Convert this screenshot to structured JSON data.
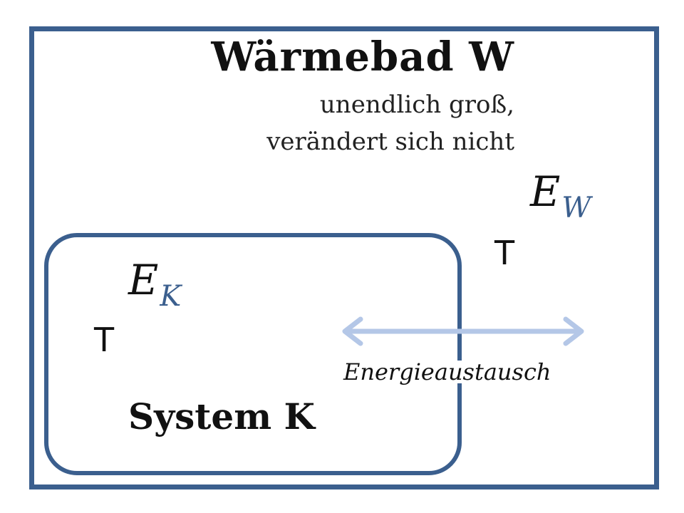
{
  "diagram": {
    "heat_bath": {
      "title": "Wärmebad W",
      "description_line1": "unendlich groß,",
      "description_line2": "verändert sich nicht",
      "energy_symbol": "E",
      "energy_subscript": "W",
      "temperature_symbol": "T"
    },
    "system": {
      "label": "System K",
      "energy_symbol": "E",
      "energy_subscript": "K",
      "temperature_symbol": "T"
    },
    "exchange": {
      "label": "Energieaustausch"
    }
  },
  "colors": {
    "border": "#3B5F8E",
    "arrow": "#B4C7E7",
    "subscript": "#3B5F8E",
    "text": "#111111"
  }
}
